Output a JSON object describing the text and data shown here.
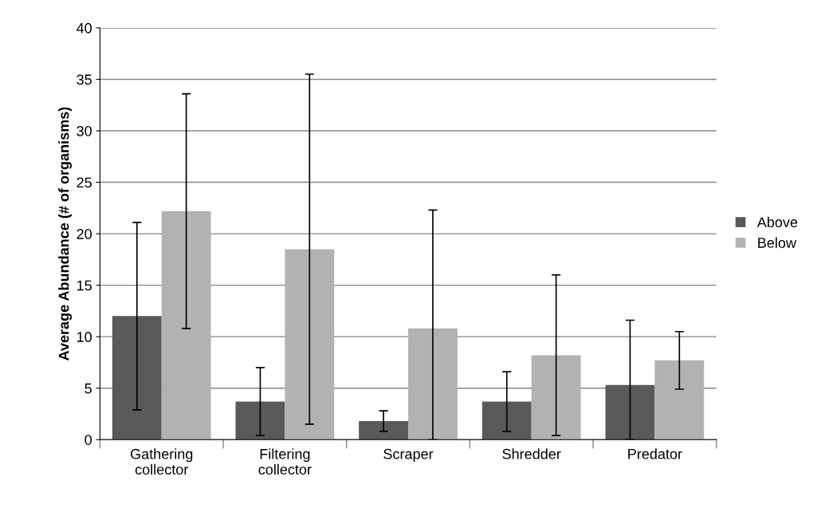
{
  "chart_data": {
    "type": "bar",
    "ylabel": "Average Abundance (# of organisms)",
    "categories": [
      "Gathering\ncollector",
      "Filtering\ncollector",
      "Scraper",
      "Shredder",
      "Predator"
    ],
    "series": [
      {
        "name": "Above",
        "color": "#595959",
        "values": [
          12.0,
          3.7,
          1.8,
          3.7,
          5.3
        ],
        "errors": [
          9.1,
          3.3,
          1.0,
          2.9,
          [
            0,
            11.6
          ]
        ]
      },
      {
        "name": "Below",
        "color": "#b2b2b2",
        "values": [
          22.2,
          18.5,
          10.8,
          8.2,
          7.7
        ],
        "errors": [
          11.4,
          17.0,
          [
            0,
            22.3
          ],
          7.8,
          2.8
        ]
      }
    ],
    "ylim": [
      0,
      40
    ],
    "yticks": [
      0,
      5,
      10,
      15,
      20,
      25,
      30,
      35,
      40
    ],
    "grid": "y",
    "legend": "right"
  }
}
